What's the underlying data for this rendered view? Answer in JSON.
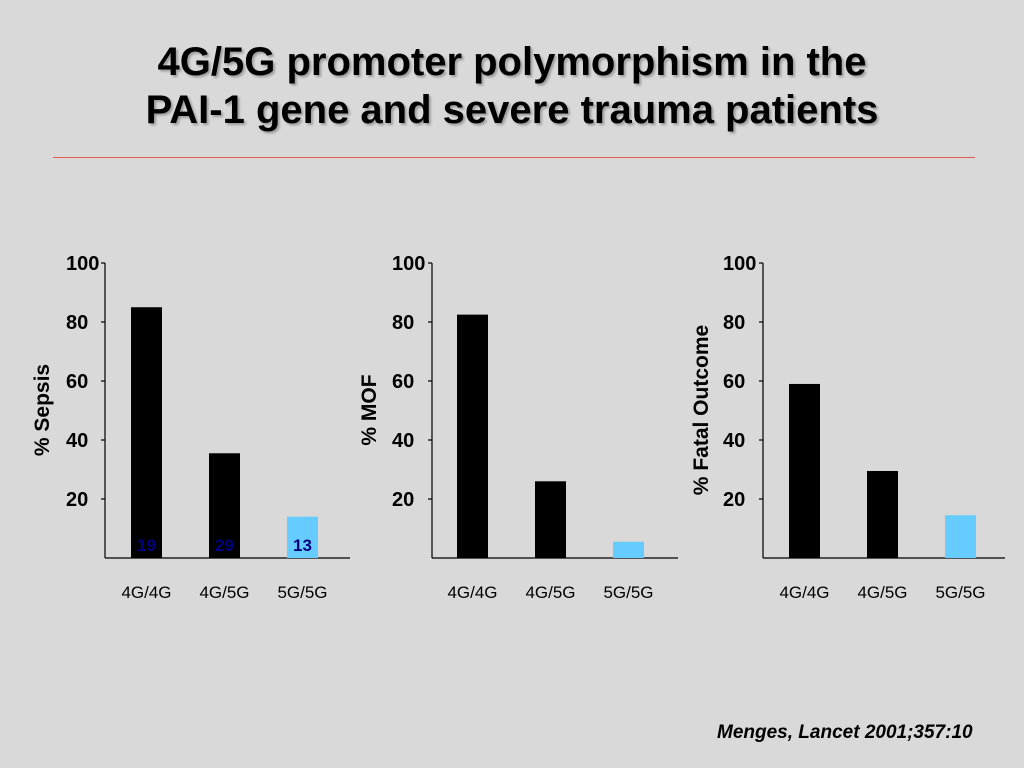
{
  "slide": {
    "title_line1": "4G/5G promoter polymorphism in the",
    "title_line2": "PAI-1 gene and severe trauma patients",
    "citation": "Menges, Lancet 2001;357:10"
  },
  "colors": {
    "background": "#d9d9d9",
    "rule": "#e65a4a",
    "bar_dark": "#000000",
    "bar_light": "#66ccff",
    "count_label": "#000080"
  },
  "chart_data": [
    {
      "type": "bar",
      "ylabel": "% Sepsis",
      "categories": [
        "4G/4G",
        "4G/5G",
        "5G/5G"
      ],
      "values": [
        85,
        35.5,
        14
      ],
      "bar_labels": [
        "19",
        "29",
        "13"
      ],
      "ylim": [
        0,
        100
      ],
      "yticks": [
        20,
        40,
        60,
        80,
        100
      ],
      "bar_colors": [
        "#000000",
        "#000000",
        "#66ccff"
      ],
      "grid": false
    },
    {
      "type": "bar",
      "ylabel": "% MOF",
      "categories": [
        "4G/4G",
        "4G/5G",
        "5G/5G"
      ],
      "values": [
        82.5,
        26,
        5.5
      ],
      "ylim": [
        0,
        100
      ],
      "yticks": [
        20,
        40,
        60,
        80,
        100
      ],
      "bar_colors": [
        "#000000",
        "#000000",
        "#66ccff"
      ],
      "grid": false
    },
    {
      "type": "bar",
      "ylabel": "% Fatal Outcome",
      "categories": [
        "4G/4G",
        "4G/5G",
        "5G/5G"
      ],
      "values": [
        59,
        29.5,
        14.5
      ],
      "ylim": [
        0,
        100
      ],
      "yticks": [
        20,
        40,
        60,
        80,
        100
      ],
      "bar_colors": [
        "#000000",
        "#000000",
        "#66ccff"
      ],
      "grid": false
    }
  ]
}
